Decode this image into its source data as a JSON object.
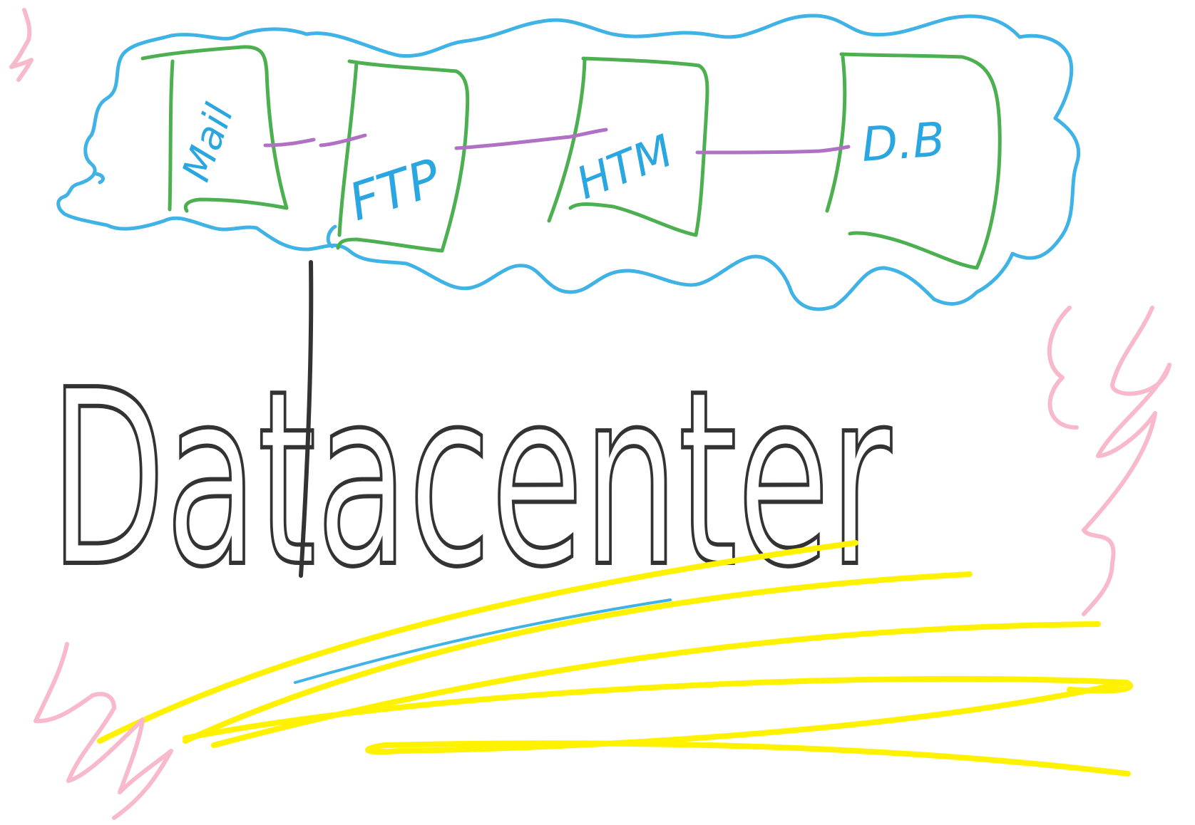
{
  "title": "Datacenter",
  "services": [
    {
      "label": "Mail"
    },
    {
      "label": "FTP"
    },
    {
      "label": "HTM"
    },
    {
      "label": "D.B"
    }
  ],
  "colors": {
    "cloud": "#3fb2e6",
    "box": "#4caf50",
    "link": "#b071c4",
    "label": "#2aa6e0",
    "ink": "#333333",
    "highlight": "#fff200",
    "lightning": "#f8b9cd",
    "background": "#ffffff"
  }
}
